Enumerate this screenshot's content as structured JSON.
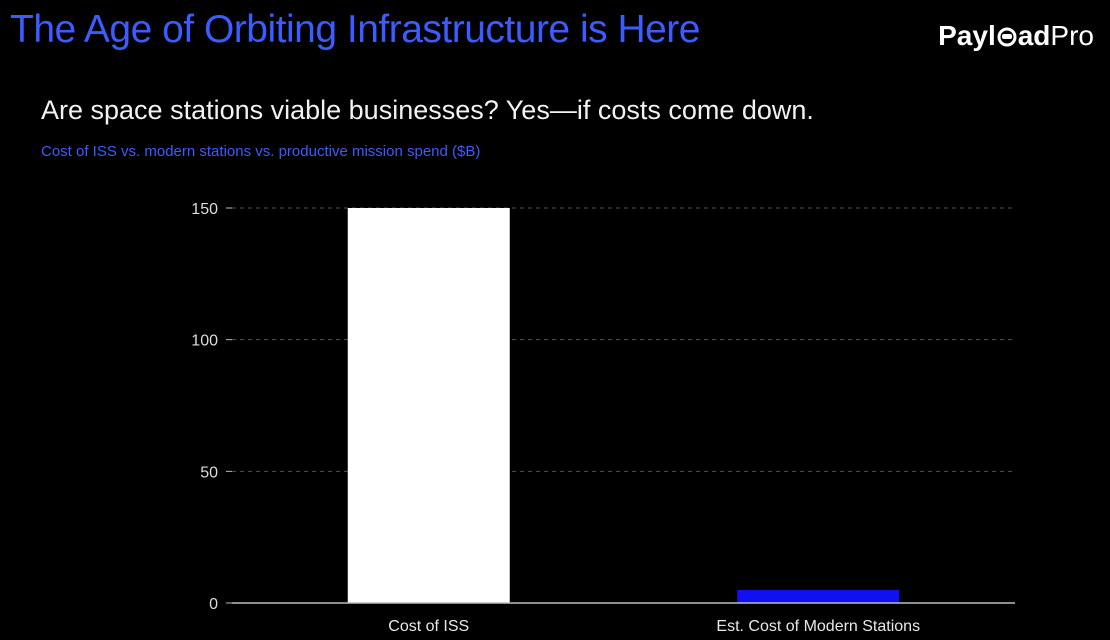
{
  "slide": {
    "headline": "The Age of Orbiting Infrastructure is Here",
    "brand": {
      "part_a": "Payl",
      "part_b": "ad",
      "part_c": "Pro"
    },
    "subtitle": "Are space stations viable businesses? Yes—if costs come down.",
    "caption": "Cost of ISS vs. modern stations vs. productive mission spend ($B)"
  },
  "colors": {
    "accent": "#3b5cff",
    "bar_iss": "#ffffff",
    "bar_modern": "#1010f0",
    "grid": "#555555",
    "axis": "#bdbdbd"
  },
  "chart_data": {
    "type": "bar",
    "categories": [
      "Cost of ISS",
      "Est. Cost of Modern Stations"
    ],
    "values": [
      150,
      5
    ],
    "ylim": [
      0,
      150
    ],
    "yticks": [
      0,
      50,
      100,
      150
    ],
    "title": "",
    "xlabel": "",
    "ylabel": "",
    "grid": true
  }
}
